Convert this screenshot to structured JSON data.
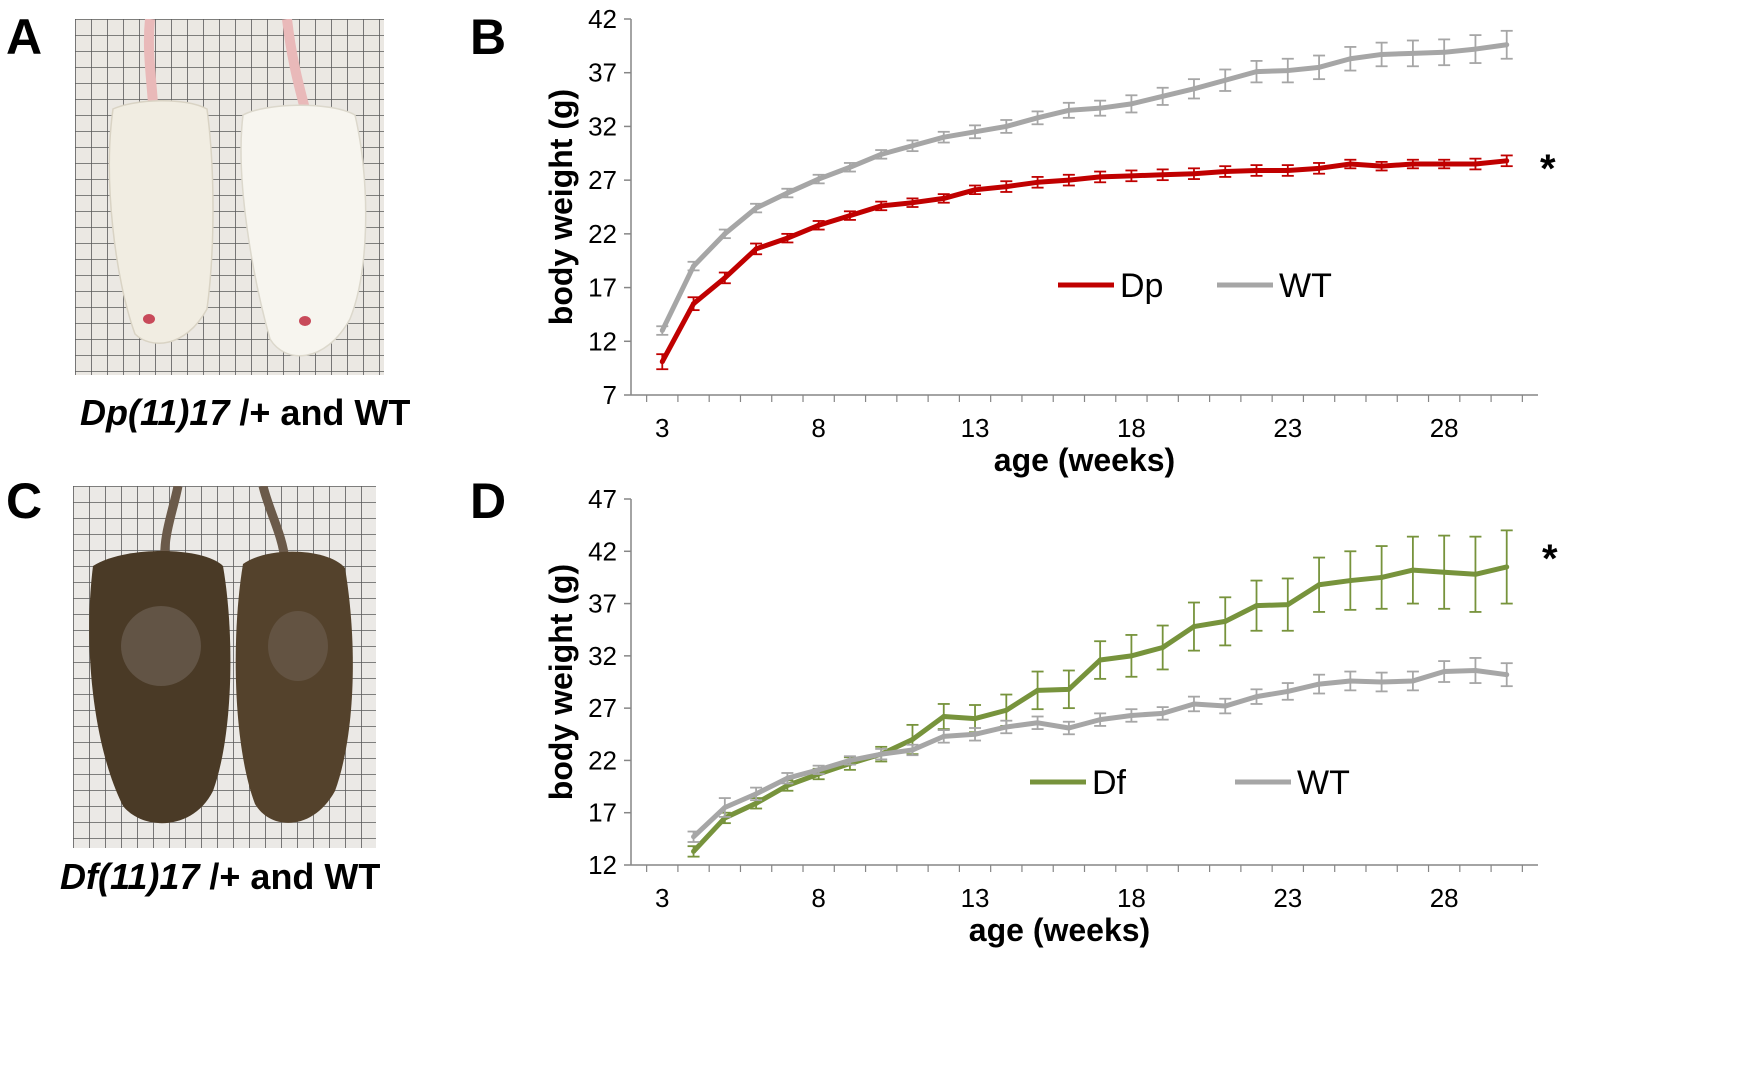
{
  "panels": {
    "A": {
      "letter": "A",
      "caption_italic": "Dp(11)17",
      "caption_rest": " /+ and WT"
    },
    "B": {
      "letter": "B"
    },
    "C": {
      "letter": "C",
      "caption_italic": "Df(11)17",
      "caption_rest": " /+ and WT"
    },
    "D": {
      "letter": "D"
    }
  },
  "colors": {
    "dp": "#c00000",
    "df": "#77933c",
    "wt": "#a6a6a6",
    "white_mouse": "#f3efe6",
    "brown_mouse": "#4a3a26"
  },
  "chart_data": [
    {
      "type": "line",
      "panel": "B",
      "xlabel": "age (weeks)",
      "ylabel": "body weight (g)",
      "xlim": [
        2,
        31
      ],
      "ylim": [
        7,
        42
      ],
      "xticks": [
        3,
        8,
        13,
        18,
        23,
        28
      ],
      "yticks": [
        7,
        12,
        17,
        22,
        27,
        32,
        37,
        42
      ],
      "annotation": "*",
      "legend": "center-right",
      "series": [
        {
          "name": "Dp",
          "color": "#c00000",
          "x": [
            3,
            4,
            5,
            6,
            7,
            8,
            9,
            10,
            11,
            12,
            13,
            14,
            15,
            16,
            17,
            18,
            19,
            20,
            21,
            22,
            23,
            24,
            25,
            26,
            27,
            28,
            29,
            30
          ],
          "y": [
            10.1,
            15.5,
            17.9,
            20.6,
            21.6,
            22.8,
            23.7,
            24.6,
            24.9,
            25.3,
            26.1,
            26.4,
            26.8,
            27.0,
            27.3,
            27.4,
            27.5,
            27.6,
            27.8,
            27.9,
            27.9,
            28.1,
            28.5,
            28.3,
            28.5,
            28.5,
            28.5,
            28.8
          ],
          "err": [
            0.7,
            0.6,
            0.5,
            0.5,
            0.4,
            0.4,
            0.4,
            0.4,
            0.4,
            0.4,
            0.4,
            0.5,
            0.5,
            0.5,
            0.5,
            0.5,
            0.5,
            0.5,
            0.5,
            0.5,
            0.5,
            0.5,
            0.4,
            0.4,
            0.4,
            0.4,
            0.5,
            0.5
          ]
        },
        {
          "name": "WT",
          "color": "#a6a6a6",
          "x": [
            3,
            4,
            5,
            6,
            7,
            8,
            9,
            10,
            11,
            12,
            13,
            14,
            15,
            16,
            17,
            18,
            19,
            20,
            21,
            22,
            23,
            24,
            25,
            26,
            27,
            28,
            29,
            30
          ],
          "y": [
            13.0,
            19.0,
            22.0,
            24.4,
            25.8,
            27.1,
            28.2,
            29.4,
            30.2,
            31.0,
            31.5,
            32.0,
            32.8,
            33.5,
            33.7,
            34.1,
            34.8,
            35.5,
            36.3,
            37.1,
            37.2,
            37.5,
            38.3,
            38.7,
            38.8,
            38.9,
            39.2,
            39.6
          ],
          "err": [
            0.4,
            0.4,
            0.4,
            0.4,
            0.4,
            0.4,
            0.4,
            0.4,
            0.5,
            0.5,
            0.6,
            0.6,
            0.6,
            0.7,
            0.7,
            0.8,
            0.8,
            0.9,
            1.0,
            1.0,
            1.1,
            1.1,
            1.1,
            1.1,
            1.2,
            1.2,
            1.3,
            1.3
          ]
        }
      ]
    },
    {
      "type": "line",
      "panel": "D",
      "xlabel": "age (weeks)",
      "ylabel": "body weight (g)",
      "xlim": [
        2,
        31
      ],
      "ylim": [
        12,
        47
      ],
      "xticks": [
        3,
        8,
        13,
        18,
        23,
        28
      ],
      "yticks": [
        12,
        17,
        22,
        27,
        32,
        37,
        42,
        47
      ],
      "annotation": "*",
      "legend": "lower-center",
      "series": [
        {
          "name": "Df",
          "color": "#77933c",
          "x": [
            4,
            5,
            6,
            7,
            8,
            9,
            10,
            11,
            12,
            13,
            14,
            15,
            16,
            17,
            18,
            19,
            20,
            21,
            22,
            23,
            24,
            25,
            26,
            27,
            28,
            29,
            30
          ],
          "y": [
            13.3,
            16.5,
            17.9,
            19.6,
            20.7,
            21.7,
            22.6,
            24.0,
            26.2,
            26.0,
            26.8,
            28.7,
            28.8,
            31.6,
            32.0,
            32.8,
            34.8,
            35.3,
            36.8,
            36.9,
            38.8,
            39.2,
            39.5,
            40.2,
            40.0,
            39.8,
            40.5
          ],
          "err": [
            0.5,
            0.5,
            0.5,
            0.5,
            0.5,
            0.6,
            0.7,
            1.4,
            1.2,
            1.3,
            1.5,
            1.8,
            1.8,
            1.8,
            2.0,
            2.1,
            2.3,
            2.3,
            2.4,
            2.5,
            2.6,
            2.8,
            3.0,
            3.2,
            3.5,
            3.6,
            3.5
          ]
        },
        {
          "name": "WT",
          "color": "#a6a6a6",
          "x": [
            4,
            5,
            6,
            7,
            8,
            9,
            10,
            11,
            12,
            13,
            14,
            15,
            16,
            17,
            18,
            19,
            20,
            21,
            22,
            23,
            24,
            25,
            26,
            27,
            28,
            29,
            30
          ],
          "y": [
            14.7,
            17.5,
            18.8,
            20.3,
            21.1,
            22.0,
            22.6,
            23.0,
            24.3,
            24.5,
            25.2,
            25.6,
            25.1,
            25.9,
            26.3,
            26.5,
            27.4,
            27.2,
            28.1,
            28.6,
            29.3,
            29.6,
            29.5,
            29.6,
            30.5,
            30.6,
            30.2
          ],
          "err": [
            0.5,
            0.9,
            0.6,
            0.5,
            0.4,
            0.4,
            0.5,
            0.5,
            0.6,
            0.6,
            0.6,
            0.6,
            0.6,
            0.6,
            0.6,
            0.6,
            0.7,
            0.7,
            0.7,
            0.8,
            0.9,
            0.9,
            0.9,
            0.9,
            1.0,
            1.2,
            1.1
          ]
        }
      ]
    }
  ]
}
